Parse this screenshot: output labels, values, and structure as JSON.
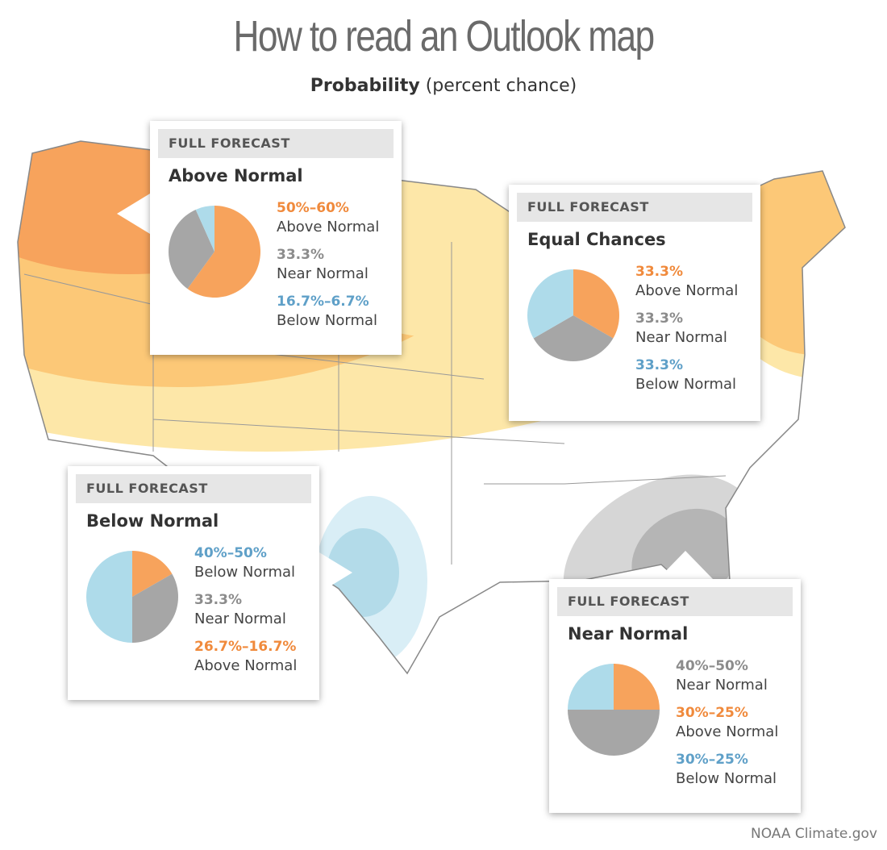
{
  "header": {
    "title": "How to read an Outlook map",
    "subtitle_bold": "Probability",
    "subtitle_rest": "(percent chance)"
  },
  "boxes": [
    {
      "tag": "FULL FORECAST",
      "title": "Above Normal",
      "items": [
        {
          "value": "50%–60%",
          "label": "Above Normal",
          "color": "#f08a3c"
        },
        {
          "value": "33.3%",
          "label": "Near Normal",
          "color": "#8c8c8c"
        },
        {
          "value": "16.7%–6.7%",
          "label": "Below Normal",
          "color": "#5fa0c8"
        }
      ],
      "pie": [
        {
          "value": 60,
          "color": "#f7a35c"
        },
        {
          "value": 33.3,
          "color": "#a6a6a6"
        },
        {
          "value": 6.7,
          "color": "#aedbea"
        }
      ]
    },
    {
      "tag": "FULL FORECAST",
      "title": "Equal Chances",
      "items": [
        {
          "value": "33.3%",
          "label": "Above Normal",
          "color": "#f08a3c"
        },
        {
          "value": "33.3%",
          "label": "Near Normal",
          "color": "#8c8c8c"
        },
        {
          "value": "33.3%",
          "label": "Below Normal",
          "color": "#5fa0c8"
        }
      ],
      "pie": [
        {
          "value": 33.3,
          "color": "#f7a35c"
        },
        {
          "value": 33.3,
          "color": "#a6a6a6"
        },
        {
          "value": 33.3,
          "color": "#aedbea"
        }
      ]
    },
    {
      "tag": "FULL FORECAST",
      "title": "Below Normal",
      "items": [
        {
          "value": "40%–50%",
          "label": "Below Normal",
          "color": "#5fa0c8"
        },
        {
          "value": "33.3%",
          "label": "Near Normal",
          "color": "#8c8c8c"
        },
        {
          "value": "26.7%–16.7%",
          "label": "Above Normal",
          "color": "#f08a3c"
        }
      ],
      "pie": [
        {
          "value": 16.7,
          "color": "#f7a35c"
        },
        {
          "value": 33.3,
          "color": "#a6a6a6"
        },
        {
          "value": 50,
          "color": "#aedbea"
        }
      ]
    },
    {
      "tag": "FULL FORECAST",
      "title": "Near Normal",
      "items": [
        {
          "value": "40%–50%",
          "label": "Near Normal",
          "color": "#8c8c8c"
        },
        {
          "value": "30%–25%",
          "label": "Above Normal",
          "color": "#f08a3c"
        },
        {
          "value": "30%–25%",
          "label": "Below Normal",
          "color": "#5fa0c8"
        }
      ],
      "pie": [
        {
          "value": 25,
          "color": "#f7a35c"
        },
        {
          "value": 50,
          "color": "#a6a6a6"
        },
        {
          "value": 25,
          "color": "#aedbea"
        }
      ]
    }
  ],
  "credit": "NOAA Climate.gov"
}
